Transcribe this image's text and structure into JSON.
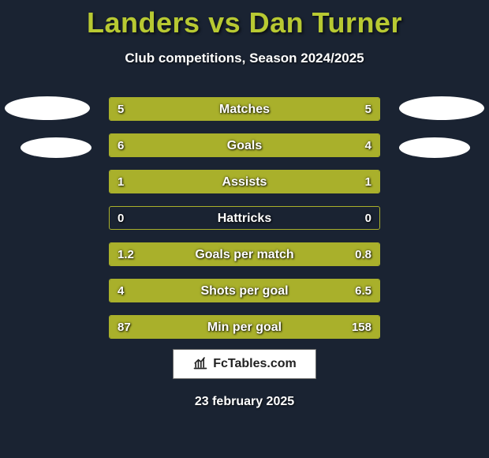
{
  "title": "Landers vs Dan Turner",
  "subtitle": "Club competitions, Season 2024/2025",
  "date_footer": "23 february 2025",
  "brand": {
    "text": "FcTables.com"
  },
  "colors": {
    "background": "#1a2332",
    "title": "#b8c932",
    "bar_fill": "#a9b02b",
    "bar_border": "#a9b02b",
    "text": "#ffffff",
    "brand_bg": "#ffffff",
    "brand_text": "#222222"
  },
  "metrics": [
    {
      "label": "Matches",
      "left_value": "5",
      "right_value": "5",
      "left_fill_pct": 50,
      "right_fill_pct": 50
    },
    {
      "label": "Goals",
      "left_value": "6",
      "right_value": "4",
      "left_fill_pct": 60,
      "right_fill_pct": 40
    },
    {
      "label": "Assists",
      "left_value": "1",
      "right_value": "1",
      "left_fill_pct": 50,
      "right_fill_pct": 50
    },
    {
      "label": "Hattricks",
      "left_value": "0",
      "right_value": "0",
      "left_fill_pct": 0,
      "right_fill_pct": 0
    },
    {
      "label": "Goals per match",
      "left_value": "1.2",
      "right_value": "0.8",
      "left_fill_pct": 60,
      "right_fill_pct": 40
    },
    {
      "label": "Shots per goal",
      "left_value": "4",
      "right_value": "6.5",
      "left_fill_pct": 38,
      "right_fill_pct": 62
    },
    {
      "label": "Min per goal",
      "left_value": "87",
      "right_value": "158",
      "left_fill_pct": 36,
      "right_fill_pct": 64
    }
  ]
}
